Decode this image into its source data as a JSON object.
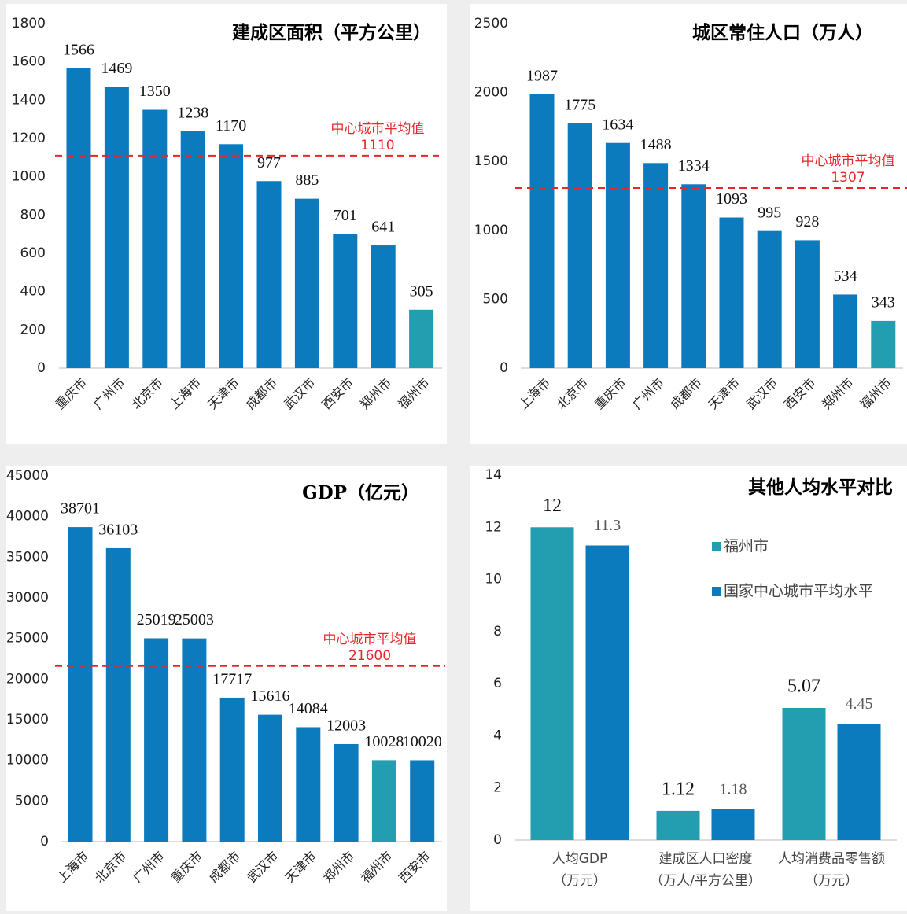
{
  "chart_data": [
    {
      "type": "bar",
      "title": "建成区面积（平方公里）",
      "categories": [
        "重庆市",
        "广州市",
        "北京市",
        "上海市",
        "天津市",
        "成都市",
        "武汉市",
        "西安市",
        "郑州市",
        "福州市"
      ],
      "values": [
        1566,
        1469,
        1350,
        1238,
        1170,
        977,
        885,
        701,
        641,
        305
      ],
      "colors": [
        "#0b7bbd",
        "#0b7bbd",
        "#0b7bbd",
        "#0b7bbd",
        "#0b7bbd",
        "#0b7bbd",
        "#0b7bbd",
        "#0b7bbd",
        "#0b7bbd",
        "#239db0"
      ],
      "ylim": [
        0,
        1800
      ],
      "yticks": [
        0,
        200,
        400,
        600,
        800,
        1000,
        1200,
        1400,
        1600,
        1800
      ],
      "reference_line": {
        "label": "中心城市平均值",
        "value": 1110,
        "color": "#e8262a"
      }
    },
    {
      "type": "bar",
      "title": "城区常住人口（万人）",
      "categories": [
        "上海市",
        "北京市",
        "重庆市",
        "广州市",
        "成都市",
        "天津市",
        "武汉市",
        "西安市",
        "郑州市",
        "福州市"
      ],
      "values": [
        1987,
        1775,
        1634,
        1488,
        1334,
        1093,
        995,
        928,
        534,
        343
      ],
      "colors": [
        "#0b7bbd",
        "#0b7bbd",
        "#0b7bbd",
        "#0b7bbd",
        "#0b7bbd",
        "#0b7bbd",
        "#0b7bbd",
        "#0b7bbd",
        "#0b7bbd",
        "#239db0"
      ],
      "ylim": [
        0,
        2500
      ],
      "yticks": [
        0,
        500,
        1000,
        1500,
        2000,
        2500
      ],
      "reference_line": {
        "label": "中心城市平均值",
        "value": 1307,
        "color": "#e8262a"
      }
    },
    {
      "type": "bar",
      "title": "GDP（亿元）",
      "categories": [
        "上海市",
        "北京市",
        "广州市",
        "重庆市",
        "成都市",
        "武汉市",
        "天津市",
        "郑州市",
        "福州市",
        "西安市"
      ],
      "values": [
        38701,
        36103,
        25019,
        25003,
        17717,
        15616,
        14084,
        12003,
        10028,
        10020
      ],
      "colors": [
        "#0b7bbd",
        "#0b7bbd",
        "#0b7bbd",
        "#0b7bbd",
        "#0b7bbd",
        "#0b7bbd",
        "#0b7bbd",
        "#0b7bbd",
        "#239db0",
        "#0b7bbd"
      ],
      "ylim": [
        0,
        45000
      ],
      "yticks": [
        0,
        5000,
        10000,
        15000,
        20000,
        25000,
        30000,
        35000,
        40000,
        45000
      ],
      "reference_line": {
        "label": "中心城市平均值",
        "value": 21600,
        "color": "#e8262a"
      }
    },
    {
      "type": "grouped_bar",
      "title": "其他人均水平对比",
      "categories": [
        [
          "人均GDP",
          "（万元）"
        ],
        [
          "建成区人口密度",
          "（万人/平方公里）"
        ],
        [
          "人均消费品零售额",
          "（万元）"
        ]
      ],
      "series": [
        {
          "name": "福州市",
          "color": "#239db0",
          "values": [
            12,
            1.12,
            5.07
          ]
        },
        {
          "name": "国家中心城市平均水平",
          "color": "#0b7bbd",
          "values": [
            11.3,
            1.18,
            4.45
          ]
        }
      ],
      "ylim": [
        0,
        14
      ],
      "yticks": [
        0,
        2,
        4,
        6,
        8,
        10,
        12,
        14
      ],
      "legend": "right"
    }
  ]
}
